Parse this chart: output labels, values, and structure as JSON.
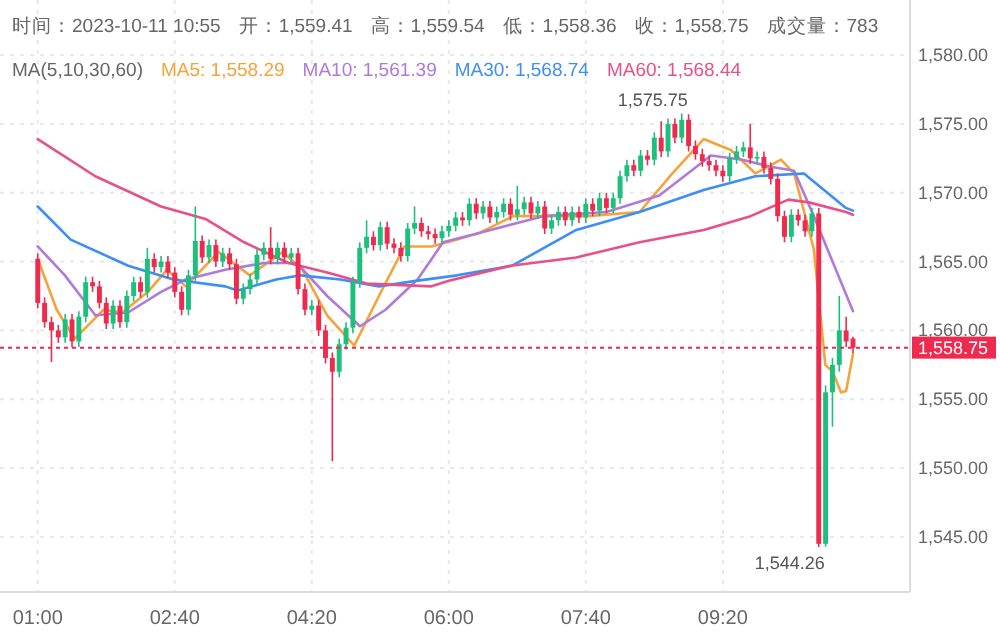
{
  "chart_data": {
    "type": "candlestick",
    "annotations": [
      "时间：2023-10-11 10:55",
      "开：1,559.41",
      "高：1,559.54",
      "低：1,558.36",
      "收：1,558.75",
      "成交量：783",
      {
        "text": "1,575.75",
        "x": 8.8333,
        "y": 1575.75
      },
      {
        "text": "1,544.26",
        "x": 10.5,
        "y": 1544.26
      }
    ],
    "legend_title": "MA(5,10,30,60)",
    "legend": "top",
    "grid": true,
    "xlim": [
      0.93,
      11.61
    ],
    "xticks": [
      {
        "value": 1,
        "label": "01:00"
      },
      {
        "value": 2.6667,
        "label": "02:40"
      },
      {
        "value": 4.3333,
        "label": "04:20"
      },
      {
        "value": 6,
        "label": "06:00"
      },
      {
        "value": 7.6667,
        "label": "07:40"
      },
      {
        "value": 9.3333,
        "label": "09:20"
      }
    ],
    "ylim": [
      1541,
      1584
    ],
    "yticks": [
      {
        "value": 1545,
        "label": "1,545.00"
      },
      {
        "value": 1550,
        "label": "1,550.00"
      },
      {
        "value": 1555,
        "label": "1,555.00"
      },
      {
        "value": 1560,
        "label": "1,560.00"
      },
      {
        "value": 1565,
        "label": "1,565.00"
      },
      {
        "value": 1570,
        "label": "1,570.00"
      },
      {
        "value": 1575,
        "label": "1,575.00"
      },
      {
        "value": 1580,
        "label": "1,580.00"
      }
    ],
    "ref_lines": [
      {
        "axis": "y",
        "value": 1558.75,
        "label": "1,558.75",
        "color": "#ee2a4f",
        "line_style": "dotted"
      }
    ],
    "series": [
      {
        "type": "candlestick",
        "x": [
          1,
          1.0833,
          1.1667,
          1.25,
          1.3333,
          1.4167,
          1.5,
          1.5833,
          1.6667,
          1.75,
          1.8333,
          1.9167,
          2,
          2.0833,
          2.1667,
          2.25,
          2.3333,
          2.4167,
          2.5,
          2.5833,
          2.6667,
          2.75,
          2.8333,
          2.9167,
          3,
          3.0833,
          3.1667,
          3.25,
          3.3333,
          3.4167,
          3.5,
          3.5833,
          3.6667,
          3.75,
          3.8333,
          3.9167,
          4,
          4.0833,
          4.1667,
          4.25,
          4.3333,
          4.4167,
          4.5,
          4.5833,
          4.6667,
          4.75,
          4.8333,
          4.9167,
          5,
          5.0833,
          5.1667,
          5.25,
          5.3333,
          5.4167,
          5.5,
          5.5833,
          5.6667,
          5.75,
          5.8333,
          5.9167,
          6,
          6.0833,
          6.1667,
          6.25,
          6.3333,
          6.4167,
          6.5,
          6.5833,
          6.6667,
          6.75,
          6.8333,
          6.9167,
          7,
          7.0833,
          7.1667,
          7.25,
          7.3333,
          7.4167,
          7.5,
          7.5833,
          7.6667,
          7.75,
          7.8333,
          7.9167,
          8,
          8.0833,
          8.1667,
          8.25,
          8.3333,
          8.4167,
          8.5,
          8.5833,
          8.6667,
          8.75,
          8.8333,
          8.9167,
          9,
          9.0833,
          9.1667,
          9.25,
          9.3333,
          9.4167,
          9.5,
          9.5833,
          9.6667,
          9.75,
          9.8333,
          9.9167,
          10,
          10.0833,
          10.1667,
          10.25,
          10.3333,
          10.4167,
          10.5,
          10.5833,
          10.6667,
          10.75,
          10.8333,
          10.9167
        ],
        "ohlc": [
          [
            1565.2,
            1565.6,
            1561.6,
            1562.0
          ],
          [
            1562.0,
            1562.4,
            1560.2,
            1560.6
          ],
          [
            1560.6,
            1561.0,
            1557.7,
            1560.0
          ],
          [
            1560.0,
            1560.4,
            1559.1,
            1559.5
          ],
          [
            1559.5,
            1561.2,
            1559.1,
            1560.8
          ],
          [
            1560.8,
            1561.2,
            1558.8,
            1559.2
          ],
          [
            1559.2,
            1561.4,
            1558.8,
            1561.0
          ],
          [
            1561.0,
            1563.9,
            1560.6,
            1563.5
          ],
          [
            1563.5,
            1563.9,
            1562.8,
            1563.2
          ],
          [
            1563.2,
            1563.6,
            1561.6,
            1562.0
          ],
          [
            1562.0,
            1562.4,
            1560.1,
            1560.5
          ],
          [
            1560.5,
            1562.2,
            1560.1,
            1561.8
          ],
          [
            1561.8,
            1562.2,
            1560.2,
            1560.6
          ],
          [
            1560.6,
            1562.9,
            1560.2,
            1562.5
          ],
          [
            1562.5,
            1563.9,
            1562.1,
            1563.5
          ],
          [
            1563.5,
            1563.9,
            1562.4,
            1562.8
          ],
          [
            1562.8,
            1566.0,
            1562.4,
            1565.2
          ],
          [
            1565.2,
            1565.6,
            1564.2,
            1564.6
          ],
          [
            1564.6,
            1565.4,
            1564.2,
            1565.0
          ],
          [
            1565.0,
            1565.4,
            1563.8,
            1564.2
          ],
          [
            1564.2,
            1564.6,
            1562.4,
            1562.8
          ],
          [
            1562.8,
            1563.2,
            1561.1,
            1561.5
          ],
          [
            1561.5,
            1564.4,
            1561.1,
            1564.0
          ],
          [
            1564.0,
            1569.0,
            1563.6,
            1566.5
          ],
          [
            1566.5,
            1566.9,
            1564.9,
            1565.3
          ],
          [
            1565.3,
            1566.6,
            1564.9,
            1566.2
          ],
          [
            1566.2,
            1566.6,
            1564.6,
            1565.0
          ],
          [
            1565.0,
            1566.0,
            1564.6,
            1565.6
          ],
          [
            1565.6,
            1566.0,
            1564.4,
            1564.8
          ],
          [
            1564.8,
            1565.2,
            1561.9,
            1562.3
          ],
          [
            1562.3,
            1563.4,
            1561.9,
            1563.0
          ],
          [
            1563.0,
            1564.1,
            1562.6,
            1563.7
          ],
          [
            1563.7,
            1565.9,
            1563.3,
            1565.5
          ],
          [
            1565.5,
            1566.4,
            1565.1,
            1566.0
          ],
          [
            1566.0,
            1567.5,
            1564.8,
            1565.2
          ],
          [
            1565.2,
            1566.4,
            1564.8,
            1566.0
          ],
          [
            1566.0,
            1566.4,
            1564.9,
            1565.3
          ],
          [
            1565.3,
            1566.0,
            1564.9,
            1565.6
          ],
          [
            1565.6,
            1566.0,
            1562.6,
            1563.0
          ],
          [
            1563.0,
            1563.4,
            1561.1,
            1561.5
          ],
          [
            1561.5,
            1562.2,
            1561.1,
            1561.8
          ],
          [
            1561.8,
            1562.2,
            1559.6,
            1560.0
          ],
          [
            1560.0,
            1560.4,
            1557.6,
            1558.0
          ],
          [
            1558.0,
            1558.4,
            1550.5,
            1557.0
          ],
          [
            1557.0,
            1559.4,
            1556.6,
            1559.0
          ],
          [
            1559.0,
            1560.6,
            1558.6,
            1560.2
          ],
          [
            1560.2,
            1563.9,
            1559.8,
            1563.5
          ],
          [
            1563.5,
            1566.4,
            1563.1,
            1566.0
          ],
          [
            1566.0,
            1568.0,
            1565.6,
            1566.8
          ],
          [
            1566.8,
            1567.2,
            1565.8,
            1566.2
          ],
          [
            1566.2,
            1567.9,
            1565.8,
            1567.5
          ],
          [
            1567.5,
            1567.9,
            1565.9,
            1566.3
          ],
          [
            1566.3,
            1566.7,
            1565.6,
            1566.0
          ],
          [
            1566.0,
            1566.4,
            1565.0,
            1565.4
          ],
          [
            1565.4,
            1567.8,
            1565.0,
            1567.4
          ],
          [
            1567.4,
            1569.0,
            1567.0,
            1567.8
          ],
          [
            1567.8,
            1568.2,
            1566.8,
            1567.2
          ],
          [
            1567.2,
            1567.6,
            1566.6,
            1567.0
          ],
          [
            1567.0,
            1567.4,
            1566.3,
            1566.7
          ],
          [
            1566.7,
            1567.6,
            1566.3,
            1567.2
          ],
          [
            1567.2,
            1568.0,
            1566.8,
            1567.6
          ],
          [
            1567.6,
            1568.6,
            1567.2,
            1568.2
          ],
          [
            1568.2,
            1568.6,
            1567.6,
            1568.0
          ],
          [
            1568.0,
            1569.6,
            1567.6,
            1569.2
          ],
          [
            1569.2,
            1569.6,
            1568.1,
            1568.5
          ],
          [
            1568.5,
            1569.4,
            1568.1,
            1569.0
          ],
          [
            1569.0,
            1569.4,
            1567.8,
            1568.2
          ],
          [
            1568.2,
            1569.0,
            1567.8,
            1568.6
          ],
          [
            1568.6,
            1569.6,
            1568.2,
            1569.2
          ],
          [
            1569.2,
            1569.6,
            1568.0,
            1568.4
          ],
          [
            1568.4,
            1570.5,
            1568.0,
            1568.8
          ],
          [
            1568.8,
            1569.7,
            1568.4,
            1569.3
          ],
          [
            1569.3,
            1569.7,
            1568.1,
            1568.5
          ],
          [
            1568.5,
            1569.4,
            1568.1,
            1569.0
          ],
          [
            1569.0,
            1569.4,
            1567.0,
            1567.4
          ],
          [
            1567.4,
            1568.4,
            1567.0,
            1568.0
          ],
          [
            1568.0,
            1569.0,
            1567.6,
            1568.6
          ],
          [
            1568.6,
            1569.0,
            1567.6,
            1568.0
          ],
          [
            1568.0,
            1569.0,
            1567.6,
            1568.6
          ],
          [
            1568.6,
            1569.0,
            1567.8,
            1568.2
          ],
          [
            1568.2,
            1569.6,
            1567.8,
            1569.2
          ],
          [
            1569.2,
            1569.6,
            1568.3,
            1568.7
          ],
          [
            1568.7,
            1570.0,
            1568.3,
            1569.6
          ],
          [
            1569.6,
            1570.0,
            1568.5,
            1568.9
          ],
          [
            1568.9,
            1570.0,
            1568.5,
            1569.6
          ],
          [
            1569.6,
            1571.6,
            1569.2,
            1571.2
          ],
          [
            1571.2,
            1572.4,
            1570.8,
            1572.0
          ],
          [
            1572.0,
            1572.4,
            1571.2,
            1571.6
          ],
          [
            1571.6,
            1573.1,
            1571.2,
            1572.7
          ],
          [
            1572.7,
            1573.1,
            1572.0,
            1572.4
          ],
          [
            1572.4,
            1574.4,
            1572.0,
            1574.0
          ],
          [
            1574.0,
            1575.2,
            1572.6,
            1573.0
          ],
          [
            1573.0,
            1575.4,
            1572.6,
            1575.0
          ],
          [
            1575.0,
            1575.4,
            1573.6,
            1574.0
          ],
          [
            1574.0,
            1575.75,
            1573.6,
            1575.3
          ],
          [
            1575.3,
            1575.7,
            1573.0,
            1573.4
          ],
          [
            1573.4,
            1573.8,
            1572.4,
            1572.8
          ],
          [
            1572.8,
            1573.2,
            1571.9,
            1572.3
          ],
          [
            1572.3,
            1572.7,
            1571.6,
            1572.0
          ],
          [
            1572.0,
            1572.4,
            1571.2,
            1571.6
          ],
          [
            1571.6,
            1572.0,
            1570.8,
            1571.2
          ],
          [
            1571.2,
            1572.9,
            1570.8,
            1572.5
          ],
          [
            1572.5,
            1573.4,
            1572.1,
            1573.0
          ],
          [
            1573.0,
            1573.7,
            1572.6,
            1573.3
          ],
          [
            1573.3,
            1575.0,
            1572.1,
            1572.5
          ],
          [
            1572.5,
            1573.0,
            1572.1,
            1572.6
          ],
          [
            1572.6,
            1573.0,
            1571.4,
            1571.8
          ],
          [
            1571.8,
            1572.2,
            1570.6,
            1571.0
          ],
          [
            1571.0,
            1571.4,
            1567.9,
            1568.3
          ],
          [
            1568.3,
            1568.7,
            1566.4,
            1566.8
          ],
          [
            1566.8,
            1568.8,
            1566.4,
            1568.4
          ],
          [
            1568.4,
            1568.8,
            1567.6,
            1568.0
          ],
          [
            1568.0,
            1568.4,
            1566.8,
            1567.2
          ],
          [
            1567.2,
            1568.9,
            1566.8,
            1568.5
          ],
          [
            1568.5,
            1568.9,
            1544.26,
            1544.5
          ],
          [
            1544.5,
            1556.0,
            1544.3,
            1555.5
          ],
          [
            1555.5,
            1558.0,
            1553.0,
            1557.5
          ],
          [
            1557.5,
            1562.5,
            1557.0,
            1560.0
          ],
          [
            1560.0,
            1561.0,
            1558.8,
            1559.2
          ],
          [
            1559.41,
            1559.54,
            1558.36,
            1558.75
          ]
        ],
        "colors": [
          "#ee2a4f",
          "#ee2a4f",
          "#ee2a4f",
          "#ee2a4f",
          "#1dbf7c",
          "#ee2a4f",
          "#1dbf7c",
          "#1dbf7c",
          "#ee2a4f",
          "#ee2a4f",
          "#ee2a4f",
          "#1dbf7c",
          "#ee2a4f",
          "#1dbf7c",
          "#1dbf7c",
          "#ee2a4f",
          "#1dbf7c",
          "#ee2a4f",
          "#1dbf7c",
          "#ee2a4f",
          "#ee2a4f",
          "#ee2a4f",
          "#1dbf7c",
          "#1dbf7c",
          "#ee2a4f",
          "#1dbf7c",
          "#ee2a4f",
          "#1dbf7c",
          "#ee2a4f",
          "#ee2a4f",
          "#1dbf7c",
          "#1dbf7c",
          "#1dbf7c",
          "#1dbf7c",
          "#ee2a4f",
          "#1dbf7c",
          "#ee2a4f",
          "#1dbf7c",
          "#ee2a4f",
          "#ee2a4f",
          "#1dbf7c",
          "#ee2a4f",
          "#ee2a4f",
          "#ee2a4f",
          "#1dbf7c",
          "#1dbf7c",
          "#1dbf7c",
          "#1dbf7c",
          "#1dbf7c",
          "#ee2a4f",
          "#1dbf7c",
          "#ee2a4f",
          "#ee2a4f",
          "#ee2a4f",
          "#1dbf7c",
          "#1dbf7c",
          "#ee2a4f",
          "#ee2a4f",
          "#ee2a4f",
          "#1dbf7c",
          "#1dbf7c",
          "#1dbf7c",
          "#ee2a4f",
          "#1dbf7c",
          "#ee2a4f",
          "#1dbf7c",
          "#ee2a4f",
          "#1dbf7c",
          "#1dbf7c",
          "#ee2a4f",
          "#1dbf7c",
          "#1dbf7c",
          "#ee2a4f",
          "#1dbf7c",
          "#ee2a4f",
          "#1dbf7c",
          "#1dbf7c",
          "#ee2a4f",
          "#1dbf7c",
          "#ee2a4f",
          "#1dbf7c",
          "#ee2a4f",
          "#1dbf7c",
          "#ee2a4f",
          "#1dbf7c",
          "#1dbf7c",
          "#1dbf7c",
          "#ee2a4f",
          "#1dbf7c",
          "#ee2a4f",
          "#1dbf7c",
          "#ee2a4f",
          "#1dbf7c",
          "#ee2a4f",
          "#1dbf7c",
          "#ee2a4f",
          "#ee2a4f",
          "#ee2a4f",
          "#ee2a4f",
          "#ee2a4f",
          "#ee2a4f",
          "#1dbf7c",
          "#1dbf7c",
          "#1dbf7c",
          "#ee2a4f",
          "#1dbf7c",
          "#ee2a4f",
          "#ee2a4f",
          "#ee2a4f",
          "#ee2a4f",
          "#1dbf7c",
          "#ee2a4f",
          "#ee2a4f",
          "#1dbf7c",
          "#ee2a4f",
          "#1dbf7c",
          "#1dbf7c",
          "#1dbf7c",
          "#ee2a4f",
          "#ee2a4f"
        ]
      },
      {
        "type": "line",
        "name": "MA5: 1,558.29",
        "color": "#f5a33b",
        "x": [
          1,
          1.23,
          1.45,
          1.8,
          2.03,
          2.34,
          2.57,
          2.8,
          3.2,
          3.58,
          3.98,
          4.22,
          4.52,
          4.85,
          5.15,
          5.46,
          5.79,
          6.1,
          6.38,
          6.78,
          7.69,
          8.32,
          8.72,
          9.1,
          9.43,
          9.73,
          10.04,
          10.2,
          10.44,
          10.58,
          10.67,
          10.77,
          10.8333,
          10.9167
        ],
        "values": [
          1565.2,
          1561.5,
          1559.4,
          1561.5,
          1561.3,
          1562.8,
          1564.4,
          1563.2,
          1565.7,
          1564.0,
          1565.7,
          1564.4,
          1561.1,
          1558.9,
          1562.5,
          1566.1,
          1566.1,
          1566.6,
          1567.1,
          1568.3,
          1568.3,
          1568.6,
          1571.4,
          1573.9,
          1573.1,
          1571.4,
          1572.4,
          1571.4,
          1565.9,
          1557.5,
          1557.0,
          1555.5,
          1555.6,
          1558.3
        ]
      },
      {
        "type": "line",
        "name": "MA10: 1,561.39",
        "color": "#b07ad8",
        "x": [
          1,
          1.33,
          1.7,
          2.1,
          2.5,
          2.8,
          3.28,
          3.75,
          4.15,
          4.52,
          4.92,
          5.23,
          5.62,
          5.93,
          6.38,
          7.15,
          7.92,
          8.56,
          9.19,
          9.57,
          9.9,
          10.2,
          10.44,
          10.9167
        ],
        "values": [
          1566.1,
          1564.0,
          1561.1,
          1561.3,
          1562.8,
          1563.7,
          1564.4,
          1564.9,
          1564.9,
          1562.5,
          1560.3,
          1561.5,
          1563.7,
          1566.4,
          1567.1,
          1568.3,
          1568.6,
          1569.8,
          1572.7,
          1572.4,
          1571.9,
          1571.6,
          1568.3,
          1561.4
        ]
      },
      {
        "type": "line",
        "name": "MA30: 1,568.74",
        "color": "#3d8ef5",
        "x": [
          1,
          1.4,
          2.1,
          2.65,
          3.28,
          3.43,
          3.9,
          4.2,
          4.68,
          5.15,
          5.6,
          6.1,
          6.77,
          7.55,
          8.32,
          9.1,
          9.73,
          10.32,
          10.83,
          10.9167
        ],
        "values": [
          1569.0,
          1566.6,
          1564.7,
          1563.7,
          1563.2,
          1562.9,
          1563.7,
          1564.0,
          1563.7,
          1563.2,
          1563.6,
          1564.0,
          1564.7,
          1567.3,
          1568.6,
          1570.2,
          1571.2,
          1571.4,
          1568.9,
          1568.7
        ]
      },
      {
        "type": "line",
        "name": "MA60: 1,568.44",
        "color": "#e8508a",
        "x": [
          1,
          1.7,
          2.5,
          3.04,
          3.51,
          4.05,
          4.52,
          5.0,
          5.79,
          6.0,
          6.75,
          7.55,
          8.32,
          9.1,
          9.67,
          10.13,
          10.38,
          10.83,
          10.9167
        ],
        "values": [
          1573.9,
          1571.2,
          1569.0,
          1568.1,
          1566.4,
          1564.9,
          1564.2,
          1563.4,
          1563.2,
          1563.6,
          1564.7,
          1565.3,
          1566.4,
          1567.3,
          1568.3,
          1569.5,
          1569.3,
          1568.6,
          1568.4
        ]
      }
    ]
  }
}
